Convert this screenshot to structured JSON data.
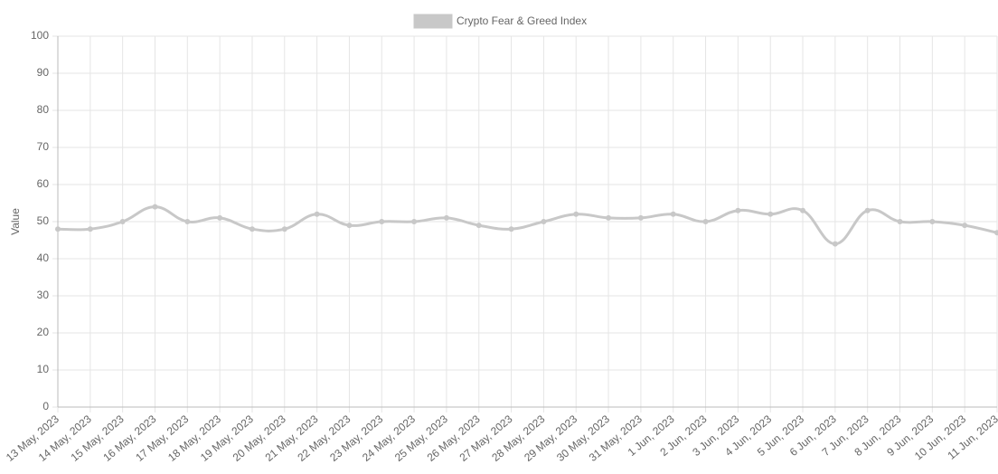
{
  "chart_data": {
    "type": "line",
    "categories": [
      "13 May, 2023",
      "14 May, 2023",
      "15 May, 2023",
      "16 May, 2023",
      "17 May, 2023",
      "18 May, 2023",
      "19 May, 2023",
      "20 May, 2023",
      "21 May, 2023",
      "22 May, 2023",
      "23 May, 2023",
      "24 May, 2023",
      "25 May, 2023",
      "26 May, 2023",
      "27 May, 2023",
      "28 May, 2023",
      "29 May, 2023",
      "30 May, 2023",
      "31 May, 2023",
      "1 Jun, 2023",
      "2 Jun, 2023",
      "3 Jun, 2023",
      "4 Jun, 2023",
      "5 Jun, 2023",
      "6 Jun, 2023",
      "7 Jun, 2023",
      "8 Jun, 2023",
      "9 Jun, 2023",
      "10 Jun, 2023",
      "11 Jun, 2023"
    ],
    "series": [
      {
        "name": "Crypto Fear & Greed Index",
        "color": "#c8c8c8",
        "values": [
          48,
          48,
          50,
          54,
          50,
          51,
          48,
          48,
          52,
          49,
          50,
          50,
          51,
          49,
          48,
          50,
          52,
          51,
          51,
          52,
          50,
          53,
          52,
          53,
          44,
          53,
          50,
          50,
          49,
          47
        ]
      }
    ],
    "y_label": "Value",
    "ylim": [
      0,
      100
    ],
    "yticks": [
      0,
      10,
      20,
      30,
      40,
      50,
      60,
      70,
      80,
      90,
      100
    ],
    "grid": true,
    "legend": "top"
  }
}
